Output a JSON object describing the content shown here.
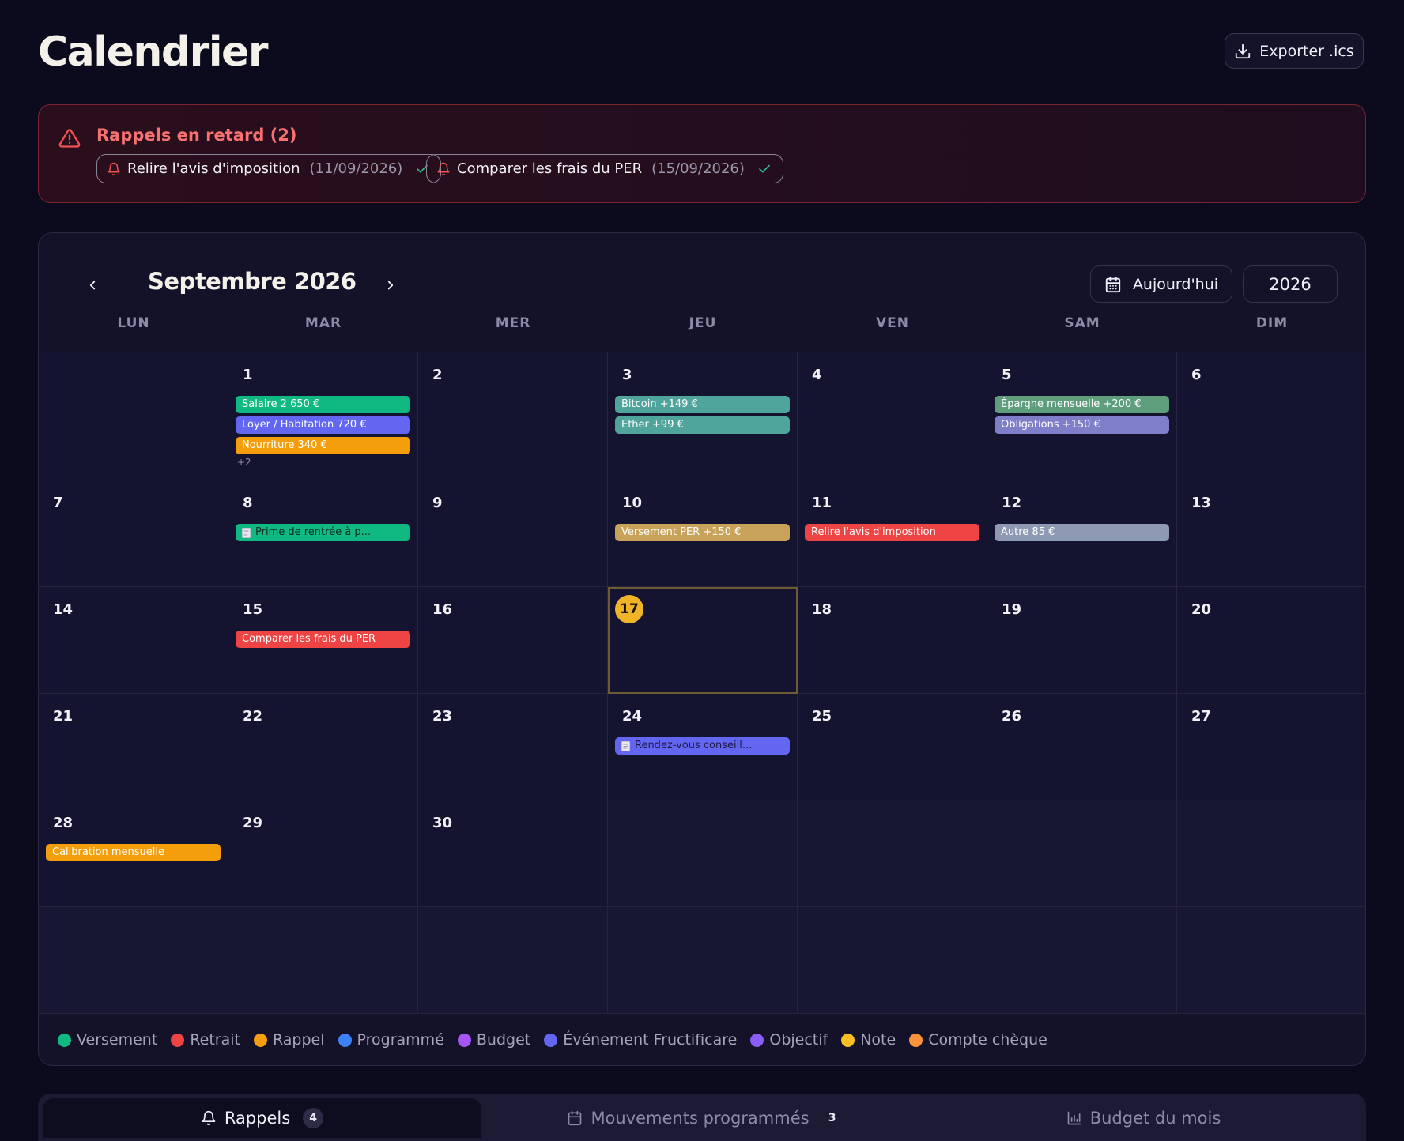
{
  "header": {
    "title": "Calendrier",
    "export_label": "Exporter .ics"
  },
  "alert": {
    "title": "Rappels en retard (2)",
    "items": [
      {
        "label": "Relire l'avis d'imposition",
        "date": "(11/09/2026)"
      },
      {
        "label": "Comparer les frais du PER",
        "date": "(15/09/2026)"
      }
    ]
  },
  "calendar": {
    "month_label": "Septembre 2026",
    "today_label": "Aujourd'hui",
    "year": "2026",
    "weekdays": [
      "LUN",
      "MAR",
      "MER",
      "JEU",
      "VEN",
      "SAM",
      "DIM"
    ],
    "days": {
      "d1": "1",
      "d2": "2",
      "d3": "3",
      "d4": "4",
      "d5": "5",
      "d6": "6",
      "d7": "7",
      "d8": "8",
      "d9": "9",
      "d10": "10",
      "d11": "11",
      "d12": "12",
      "d13": "13",
      "d14": "14",
      "d15": "15",
      "d16": "16",
      "d17": "17",
      "d18": "18",
      "d19": "19",
      "d20": "20",
      "d21": "21",
      "d22": "22",
      "d23": "23",
      "d24": "24",
      "d25": "25",
      "d26": "26",
      "d27": "27",
      "d28": "28",
      "d29": "29",
      "d30": "30"
    },
    "events": {
      "d1": [
        "Salaire 2 650 €",
        "Loyer / Habitation 720 €",
        "Nourriture 340 €"
      ],
      "d1_more": "+2",
      "d3": [
        "Bitcoin +149 €",
        "Ether +99 €"
      ],
      "d5": [
        "Épargne mensuelle +200 €",
        "Obligations +150 €"
      ],
      "d8": [
        "Prime de rentrée à p..."
      ],
      "d10": [
        "Versement PER +150 €"
      ],
      "d11": [
        "Relire l'avis d'imposition"
      ],
      "d12": [
        "Autre 85 €"
      ],
      "d15": [
        "Comparer les frais du PER"
      ],
      "d24": [
        "Rendez-vous conseill..."
      ],
      "d28": [
        "Calibration mensuelle"
      ]
    },
    "event_colors": {
      "salaire": "#10b981",
      "loyer": "#6366f1",
      "nourriture": "#f59e0b",
      "bitcoin": "#4fa59b",
      "ether": "#4fa59b",
      "epargne": "#5f9e7d",
      "obligations": "#7f7fc9",
      "prime": "#10b981",
      "versement_per": "#c9a25a",
      "relire": "#ef4444",
      "autre": "#8e9ab3",
      "comparer": "#ef4444",
      "rdv": "#6366f1",
      "calibration": "#f59e0b"
    },
    "today_color": "#f0b429"
  },
  "legend": [
    {
      "label": "Versement",
      "color": "#10b981"
    },
    {
      "label": "Retrait",
      "color": "#ef4444"
    },
    {
      "label": "Rappel",
      "color": "#f59e0b"
    },
    {
      "label": "Programmé",
      "color": "#3b82f6"
    },
    {
      "label": "Budget",
      "color": "#a855f7"
    },
    {
      "label": "Événement Fructificare",
      "color": "#6366f1"
    },
    {
      "label": "Objectif",
      "color": "#8b5cf6"
    },
    {
      "label": "Note",
      "color": "#fbbf24"
    },
    {
      "label": "Compte chèque",
      "color": "#fb923c"
    }
  ],
  "tabs": [
    {
      "label": "Rappels",
      "count": "4"
    },
    {
      "label": "Mouvements programmés",
      "count": "3"
    },
    {
      "label": "Budget du mois"
    }
  ]
}
